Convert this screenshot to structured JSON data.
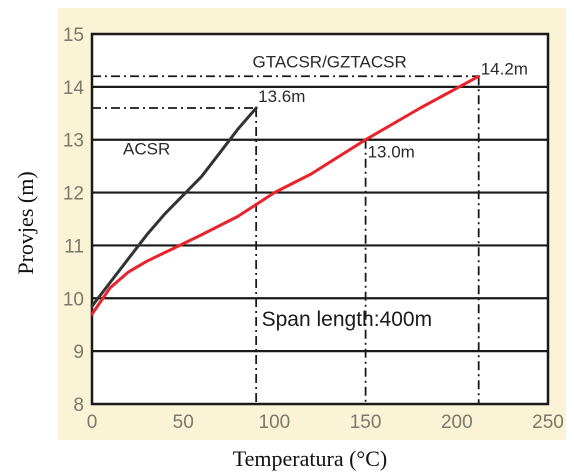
{
  "chart_data": {
    "type": "line",
    "xlabel": "Temperatura (°C)",
    "ylabel": "Provjes (m)",
    "xlim": [
      0,
      250
    ],
    "ylim": [
      8,
      15
    ],
    "x_ticks": [
      "0",
      "50",
      "100",
      "150",
      "200",
      "250"
    ],
    "y_ticks": [
      "8",
      "9",
      "10",
      "11",
      "12",
      "13",
      "14",
      "15"
    ],
    "grid": "horizontal",
    "colors": {
      "background": "#fbf3d6",
      "grid": "#1a1a1a",
      "acsr": "#333333",
      "gtacsr": "#e8232b",
      "tick_text": "#7a7a6a"
    },
    "series": [
      {
        "name": "ACSR",
        "x": [
          0,
          10,
          20,
          30,
          40,
          50,
          60,
          70,
          80,
          90
        ],
        "y": [
          9.85,
          10.3,
          10.75,
          11.2,
          11.6,
          11.95,
          12.3,
          12.75,
          13.2,
          13.6
        ]
      },
      {
        "name": "GTACSR/GZTACSR",
        "x": [
          0,
          10,
          20,
          30,
          45,
          60,
          80,
          100,
          120,
          150,
          180,
          212
        ],
        "y": [
          9.7,
          10.2,
          10.5,
          10.7,
          10.95,
          11.2,
          11.55,
          12.0,
          12.35,
          13.0,
          13.6,
          14.2
        ]
      }
    ],
    "annotations": {
      "acsr_max": "13.6m",
      "gtacsr_mid": "13.0m",
      "gtacsr_max": "14.2m",
      "span": "Span length:400m"
    },
    "reference_points": [
      {
        "x": 90,
        "y": 13.6
      },
      {
        "x": 150,
        "y": 13.0
      },
      {
        "x": 212,
        "y": 14.2
      }
    ]
  }
}
